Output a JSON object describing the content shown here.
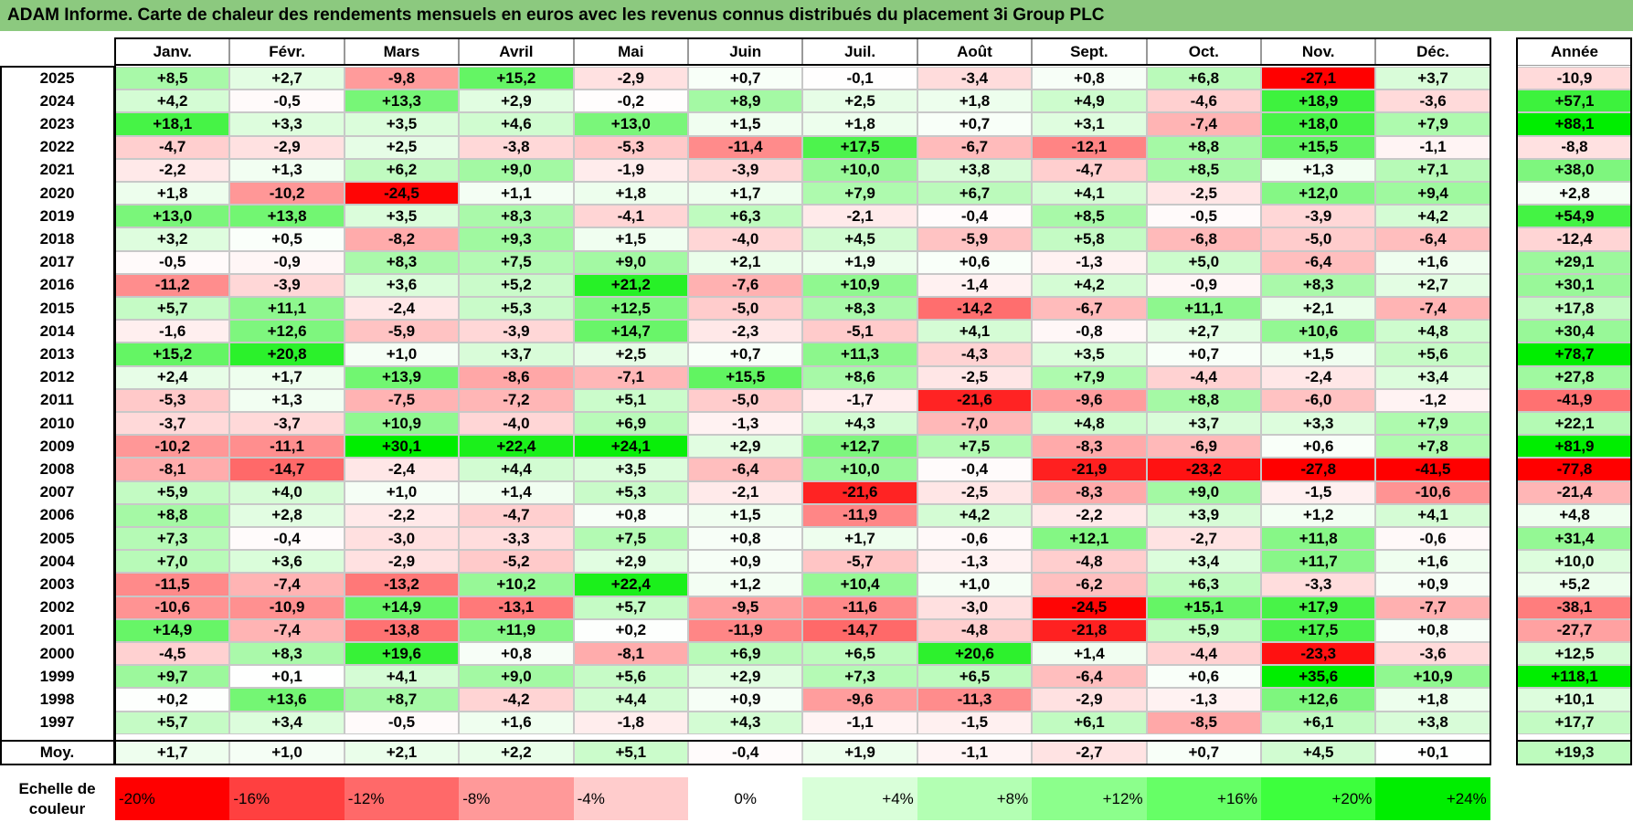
{
  "title": "ADAM Informe. Carte de chaleur des rendements mensuels en euros avec les revenus connus distribués du placement 3i Group PLC",
  "chart_data": {
    "type": "heatmap",
    "months": [
      "Janv.",
      "Févr.",
      "Mars",
      "Avril",
      "Mai",
      "Juin",
      "Juil.",
      "Août",
      "Sept.",
      "Oct.",
      "Nov.",
      "Déc."
    ],
    "annual_header": "Année",
    "rows": [
      {
        "year": "2025",
        "values": [
          "+8,5",
          "+2,7",
          "-9,8",
          "+15,2",
          "-2,9",
          "+0,7",
          "-0,1",
          "-3,4",
          "+0,8",
          "+6,8",
          "-27,1",
          "+3,7"
        ],
        "annual": "-10,9"
      },
      {
        "year": "2024",
        "values": [
          "+4,2",
          "-0,5",
          "+13,3",
          "+2,9",
          "-0,2",
          "+8,9",
          "+2,5",
          "+1,8",
          "+4,9",
          "-4,6",
          "+18,9",
          "-3,6"
        ],
        "annual": "+57,1"
      },
      {
        "year": "2023",
        "values": [
          "+18,1",
          "+3,3",
          "+3,5",
          "+4,6",
          "+13,0",
          "+1,5",
          "+1,8",
          "+0,7",
          "+3,1",
          "-7,4",
          "+18,0",
          "+7,9"
        ],
        "annual": "+88,1"
      },
      {
        "year": "2022",
        "values": [
          "-4,7",
          "-2,9",
          "+2,5",
          "-3,8",
          "-5,3",
          "-11,4",
          "+17,5",
          "-6,7",
          "-12,1",
          "+8,8",
          "+15,5",
          "-1,1"
        ],
        "annual": "-8,8"
      },
      {
        "year": "2021",
        "values": [
          "-2,2",
          "+1,3",
          "+6,2",
          "+9,0",
          "-1,9",
          "-3,9",
          "+10,0",
          "+3,8",
          "-4,7",
          "+8,5",
          "+1,3",
          "+7,1"
        ],
        "annual": "+38,0"
      },
      {
        "year": "2020",
        "values": [
          "+1,8",
          "-10,2",
          "-24,5",
          "+1,1",
          "+1,8",
          "+1,7",
          "+7,9",
          "+6,7",
          "+4,1",
          "-2,5",
          "+12,0",
          "+9,4"
        ],
        "annual": "+2,8"
      },
      {
        "year": "2019",
        "values": [
          "+13,0",
          "+13,8",
          "+3,5",
          "+8,3",
          "-4,1",
          "+6,3",
          "-2,1",
          "-0,4",
          "+8,5",
          "-0,5",
          "-3,9",
          "+4,2"
        ],
        "annual": "+54,9"
      },
      {
        "year": "2018",
        "values": [
          "+3,2",
          "+0,5",
          "-8,2",
          "+9,3",
          "+1,5",
          "-4,0",
          "+4,5",
          "-5,9",
          "+5,8",
          "-6,8",
          "-5,0",
          "-6,4"
        ],
        "annual": "-12,4"
      },
      {
        "year": "2017",
        "values": [
          "-0,5",
          "-0,9",
          "+8,3",
          "+7,5",
          "+9,0",
          "+2,1",
          "+1,9",
          "+0,6",
          "-1,3",
          "+5,0",
          "-6,4",
          "+1,6"
        ],
        "annual": "+29,1"
      },
      {
        "year": "2016",
        "values": [
          "-11,2",
          "-3,9",
          "+3,6",
          "+5,2",
          "+21,2",
          "-7,6",
          "+10,9",
          "-1,4",
          "+4,2",
          "-0,9",
          "+8,3",
          "+2,7"
        ],
        "annual": "+30,1"
      },
      {
        "year": "2015",
        "values": [
          "+5,7",
          "+11,1",
          "-2,4",
          "+5,3",
          "+12,5",
          "-5,0",
          "+8,3",
          "-14,2",
          "-6,7",
          "+11,1",
          "+2,1",
          "-7,4"
        ],
        "annual": "+17,8"
      },
      {
        "year": "2014",
        "values": [
          "-1,6",
          "+12,6",
          "-5,9",
          "-3,9",
          "+14,7",
          "-2,3",
          "-5,1",
          "+4,1",
          "-0,8",
          "+2,7",
          "+10,6",
          "+4,8"
        ],
        "annual": "+30,4"
      },
      {
        "year": "2013",
        "values": [
          "+15,2",
          "+20,8",
          "+1,0",
          "+3,7",
          "+2,5",
          "+0,7",
          "+11,3",
          "-4,3",
          "+3,5",
          "+0,7",
          "+1,5",
          "+5,6"
        ],
        "annual": "+78,7"
      },
      {
        "year": "2012",
        "values": [
          "+2,4",
          "+1,7",
          "+13,9",
          "-8,6",
          "-7,1",
          "+15,5",
          "+8,6",
          "-2,5",
          "+7,9",
          "-4,4",
          "-2,4",
          "+3,4"
        ],
        "annual": "+27,8"
      },
      {
        "year": "2011",
        "values": [
          "-5,3",
          "+1,3",
          "-7,5",
          "-7,2",
          "+5,1",
          "-5,0",
          "-1,7",
          "-21,6",
          "-9,6",
          "+8,8",
          "-6,0",
          "-1,2"
        ],
        "annual": "-41,9"
      },
      {
        "year": "2010",
        "values": [
          "-3,7",
          "-3,7",
          "+10,9",
          "-4,0",
          "+6,9",
          "-1,3",
          "+4,3",
          "-7,0",
          "+4,8",
          "+3,7",
          "+3,3",
          "+7,9"
        ],
        "annual": "+22,1"
      },
      {
        "year": "2009",
        "values": [
          "-10,2",
          "-11,1",
          "+30,1",
          "+22,4",
          "+24,1",
          "+2,9",
          "+12,7",
          "+7,5",
          "-8,3",
          "-6,9",
          "+0,6",
          "+7,8"
        ],
        "annual": "+81,9"
      },
      {
        "year": "2008",
        "values": [
          "-8,1",
          "-14,7",
          "-2,4",
          "+4,4",
          "+3,5",
          "-6,4",
          "+10,0",
          "-0,4",
          "-21,9",
          "-23,2",
          "-27,8",
          "-41,5"
        ],
        "annual": "-77,8"
      },
      {
        "year": "2007",
        "values": [
          "+5,9",
          "+4,0",
          "+1,0",
          "+1,4",
          "+5,3",
          "-2,1",
          "-21,6",
          "-2,5",
          "-8,3",
          "+9,0",
          "-1,5",
          "-10,6"
        ],
        "annual": "-21,4"
      },
      {
        "year": "2006",
        "values": [
          "+8,8",
          "+2,8",
          "-2,2",
          "-4,7",
          "+0,8",
          "+1,5",
          "-11,9",
          "+4,2",
          "-2,2",
          "+3,9",
          "+1,2",
          "+4,1"
        ],
        "annual": "+4,8"
      },
      {
        "year": "2005",
        "values": [
          "+7,3",
          "-0,4",
          "-3,0",
          "-3,3",
          "+7,5",
          "+0,8",
          "+1,7",
          "-0,6",
          "+12,1",
          "-2,7",
          "+11,8",
          "-0,6"
        ],
        "annual": "+31,4"
      },
      {
        "year": "2004",
        "values": [
          "+7,0",
          "+3,6",
          "-2,9",
          "-5,2",
          "+2,9",
          "+0,9",
          "-5,7",
          "-1,3",
          "-4,8",
          "+3,4",
          "+11,7",
          "+1,6"
        ],
        "annual": "+10,0"
      },
      {
        "year": "2003",
        "values": [
          "-11,5",
          "-7,4",
          "-13,2",
          "+10,2",
          "+22,4",
          "+1,2",
          "+10,4",
          "+1,0",
          "-6,2",
          "+6,3",
          "-3,3",
          "+0,9"
        ],
        "annual": "+5,2"
      },
      {
        "year": "2002",
        "values": [
          "-10,6",
          "-10,9",
          "+14,9",
          "-13,1",
          "+5,7",
          "-9,5",
          "-11,6",
          "-3,0",
          "-24,5",
          "+15,1",
          "+17,9",
          "-7,7"
        ],
        "annual": "-38,1"
      },
      {
        "year": "2001",
        "values": [
          "+14,9",
          "-7,4",
          "-13,8",
          "+11,9",
          "+0,2",
          "-11,9",
          "-14,7",
          "-4,8",
          "-21,8",
          "+5,9",
          "+17,5",
          "+0,8"
        ],
        "annual": "-27,7"
      },
      {
        "year": "2000",
        "values": [
          "-4,5",
          "+8,3",
          "+19,6",
          "+0,8",
          "-8,1",
          "+6,9",
          "+6,5",
          "+20,6",
          "+1,4",
          "-4,4",
          "-23,3",
          "-3,6"
        ],
        "annual": "+12,5"
      },
      {
        "year": "1999",
        "values": [
          "+9,7",
          "+0,1",
          "+4,1",
          "+9,0",
          "+5,6",
          "+2,9",
          "+7,3",
          "+6,5",
          "-6,4",
          "+0,6",
          "+35,6",
          "+10,9"
        ],
        "annual": "+118,1"
      },
      {
        "year": "1998",
        "values": [
          "+0,2",
          "+13,6",
          "+8,7",
          "-4,2",
          "+4,4",
          "+0,9",
          "-9,6",
          "-11,3",
          "-2,9",
          "-1,3",
          "+12,6",
          "+1,8"
        ],
        "annual": "+10,1"
      },
      {
        "year": "1997",
        "values": [
          "+5,7",
          "+3,4",
          "-0,5",
          "+1,6",
          "-1,8",
          "+4,3",
          "-1,1",
          "-1,5",
          "+6,1",
          "-8,5",
          "+6,1",
          "+3,8"
        ],
        "annual": "+17,7"
      }
    ],
    "average": {
      "label": "Moy.",
      "values": [
        "+1,7",
        "+1,0",
        "+2,1",
        "+2,2",
        "+5,1",
        "-0,4",
        "+1,9",
        "-1,1",
        "-2,7",
        "+0,7",
        "+4,5",
        "+0,1"
      ],
      "annual": "+19,3"
    },
    "scale": {
      "label_line1": "Echelle de",
      "label_line2": "couleur",
      "steps": [
        {
          "label": "-20%",
          "value": -20,
          "color": "#ff0000",
          "align": "left"
        },
        {
          "label": "-16%",
          "value": -16,
          "color": "#ff4040",
          "align": "left"
        },
        {
          "label": "-12%",
          "value": -12,
          "color": "#ff6969",
          "align": "left"
        },
        {
          "label": "-8%",
          "value": -8,
          "color": "#ff9999",
          "align": "left"
        },
        {
          "label": "-4%",
          "value": -4,
          "color": "#ffcccc",
          "align": "left"
        },
        {
          "label": "0%",
          "value": 0,
          "color": "#ffffff",
          "align": "center"
        },
        {
          "label": "+4%",
          "value": 4,
          "color": "#d9ffd9",
          "align": "right"
        },
        {
          "label": "+8%",
          "value": 8,
          "color": "#b3ffb3",
          "align": "right"
        },
        {
          "label": "+12%",
          "value": 12,
          "color": "#8cff8c",
          "align": "right"
        },
        {
          "label": "+16%",
          "value": 16,
          "color": "#66ff66",
          "align": "right"
        },
        {
          "label": "+20%",
          "value": 20,
          "color": "#3dff3d",
          "align": "right"
        },
        {
          "label": "+24%",
          "value": 24,
          "color": "#00ee00",
          "align": "right"
        }
      ]
    }
  },
  "colors": {
    "title_bar": "#8cc97f",
    "negative_max": "#ff0000",
    "positive_max": "#00ee00",
    "neutral": "#ffffff",
    "gridline": "#c8c8c8"
  }
}
